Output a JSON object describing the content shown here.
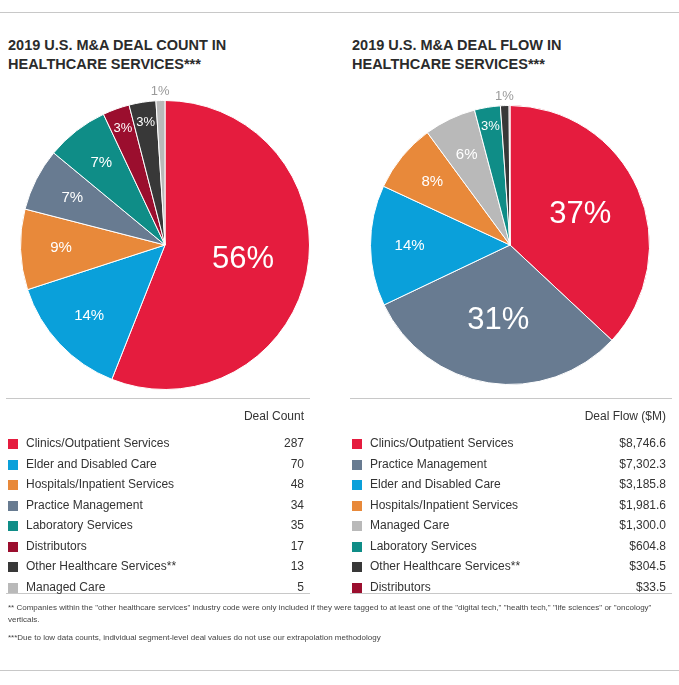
{
  "chart_data": [
    {
      "type": "pie",
      "title": "2019 U.S. M&A DEAL COUNT IN HEALTHCARE SERVICES***",
      "categories": [
        "Clinics/Outpatient Services",
        "Elder and Disabled Care",
        "Hospitals/Inpatient Services",
        "Practice Management",
        "Laboratory Services",
        "Distributors",
        "Other Healthcare Services**",
        "Managed Care"
      ],
      "values": [
        56,
        14,
        9,
        7,
        7,
        3,
        3,
        1
      ],
      "value_labels": [
        "56%",
        "14%",
        "9%",
        "7%",
        "7%",
        "3%",
        "3%",
        "1%"
      ],
      "colors": [
        "#e51c3e",
        "#0aa0da",
        "#e8893a",
        "#687b91",
        "#0f8d87",
        "#9b0e2e",
        "#383838",
        "#b9b9b9"
      ],
      "data_labels": true,
      "legend": false,
      "table_header": "Deal Count",
      "table_values": [
        287,
        70,
        48,
        34,
        35,
        17,
        13,
        5
      ]
    },
    {
      "type": "pie",
      "title": "2019 U.S. M&A DEAL FLOW IN HEALTHCARE SERVICES***",
      "categories": [
        "Clinics/Outpatient Services",
        "Practice Management",
        "Elder and Disabled Care",
        "Hospitals/Inpatient Services",
        "Managed Care",
        "Laboratory Services",
        "Other Healthcare Services**",
        "Distributors"
      ],
      "values": [
        37,
        31,
        14,
        8,
        6,
        3,
        1,
        0.1
      ],
      "value_labels": [
        "37%",
        "31%",
        "14%",
        "8%",
        "6%",
        "3%",
        "1%",
        null
      ],
      "colors": [
        "#e51c3e",
        "#687b91",
        "#0aa0da",
        "#e8893a",
        "#b9b9b9",
        "#0f8d87",
        "#383838",
        "#9b0e2e"
      ],
      "data_labels": true,
      "legend": false,
      "table_header": "Deal Flow ($M)",
      "table_values": [
        8746.6,
        7302.3,
        3185.8,
        1981.6,
        1300.0,
        604.8,
        304.5,
        33.5
      ],
      "table_value_labels": [
        "$8,746.6",
        "$7,302.3",
        "$3,185.8",
        "$1,981.6",
        "$1,300.0",
        "$604.8",
        "$304.5",
        "$33.5"
      ]
    }
  ],
  "notes": [
    "** Companies within the \"other healthcare services\" industry code were only included if they were tagged to at least one of the \"digital tech,\" \"health tech,\" \"life sciences\" or \"oncology\" verticals.",
    "***Due to low data counts, individual segment-level deal values do not use our extrapolation methodology"
  ]
}
